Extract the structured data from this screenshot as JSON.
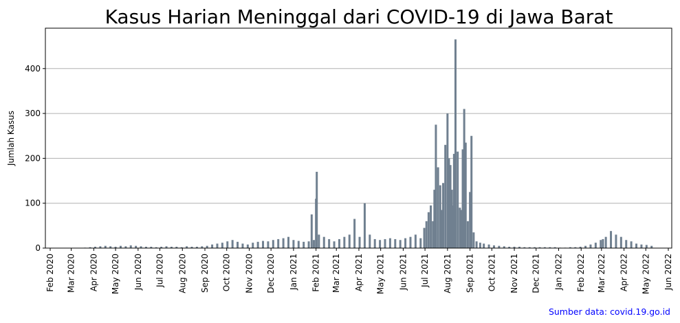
{
  "chart_data": {
    "type": "bar",
    "title": "Kasus Harian Meninggal dari COVID-19 di Jawa Barat",
    "ylabel": "Jumlah Kasus",
    "xlabel": "",
    "ylim": [
      0,
      490
    ],
    "x_range": [
      "2020-02-01",
      "2022-06-01"
    ],
    "grid": "y",
    "bar_color": "#708090",
    "source": {
      "text": "Sumber data: covid.19.go.id",
      "color": "#0000ff"
    },
    "yticks": [
      0,
      100,
      200,
      300,
      400
    ],
    "xticks": [
      {
        "date": "2020-02-01",
        "label": "Feb 2020"
      },
      {
        "date": "2020-03-01",
        "label": "Mar 2020"
      },
      {
        "date": "2020-04-01",
        "label": "Apr 2020"
      },
      {
        "date": "2020-05-01",
        "label": "May 2020"
      },
      {
        "date": "2020-06-01",
        "label": "Jun 2020"
      },
      {
        "date": "2020-07-01",
        "label": "Jul 2020"
      },
      {
        "date": "2020-08-01",
        "label": "Aug 2020"
      },
      {
        "date": "2020-09-01",
        "label": "Sep 2020"
      },
      {
        "date": "2020-10-01",
        "label": "Oct 2020"
      },
      {
        "date": "2020-11-01",
        "label": "Nov 2020"
      },
      {
        "date": "2020-12-01",
        "label": "Dec 2020"
      },
      {
        "date": "2021-01-01",
        "label": "Jan 2021"
      },
      {
        "date": "2021-02-01",
        "label": "Feb 2021"
      },
      {
        "date": "2021-03-01",
        "label": "Mar 2021"
      },
      {
        "date": "2021-04-01",
        "label": "Apr 2021"
      },
      {
        "date": "2021-05-01",
        "label": "May 2021"
      },
      {
        "date": "2021-06-01",
        "label": "Jun 2021"
      },
      {
        "date": "2021-07-01",
        "label": "Jul 2021"
      },
      {
        "date": "2021-08-01",
        "label": "Aug 2021"
      },
      {
        "date": "2021-09-01",
        "label": "Sep 2021"
      },
      {
        "date": "2021-10-01",
        "label": "Oct 2021"
      },
      {
        "date": "2021-11-01",
        "label": "Nov 2021"
      },
      {
        "date": "2021-12-01",
        "label": "Dec 2021"
      },
      {
        "date": "2022-01-01",
        "label": "Jan 2022"
      },
      {
        "date": "2022-02-01",
        "label": "Feb 2022"
      },
      {
        "date": "2022-03-01",
        "label": "Mar 2022"
      },
      {
        "date": "2022-04-01",
        "label": "Apr 2022"
      },
      {
        "date": "2022-05-01",
        "label": "May 2022"
      },
      {
        "date": "2022-06-01",
        "label": "Jun 2022"
      }
    ],
    "series": [
      {
        "x": [
          "2020-03-20",
          "2020-03-27",
          "2020-04-03",
          "2020-04-10",
          "2020-04-17",
          "2020-04-24",
          "2020-05-01",
          "2020-05-08",
          "2020-05-15",
          "2020-05-22",
          "2020-05-29",
          "2020-06-05",
          "2020-06-12",
          "2020-06-19",
          "2020-06-26",
          "2020-07-03",
          "2020-07-10",
          "2020-07-17",
          "2020-07-24",
          "2020-07-31",
          "2020-08-07",
          "2020-08-14",
          "2020-08-21",
          "2020-08-28",
          "2020-09-04",
          "2020-09-11",
          "2020-09-18",
          "2020-09-25",
          "2020-10-02",
          "2020-10-09",
          "2020-10-16",
          "2020-10-23",
          "2020-10-30",
          "2020-11-06",
          "2020-11-13",
          "2020-11-20",
          "2020-11-27",
          "2020-12-04",
          "2020-12-11",
          "2020-12-18",
          "2020-12-25",
          "2021-01-01",
          "2021-01-08",
          "2021-01-15",
          "2021-01-22",
          "2021-01-26",
          "2021-01-29",
          "2021-02-01",
          "2021-02-02",
          "2021-02-05",
          "2021-02-12",
          "2021-02-19",
          "2021-02-26",
          "2021-03-05",
          "2021-03-12",
          "2021-03-19",
          "2021-03-26",
          "2021-04-02",
          "2021-04-09",
          "2021-04-16",
          "2021-04-23",
          "2021-04-30",
          "2021-05-07",
          "2021-05-14",
          "2021-05-21",
          "2021-05-28",
          "2021-06-04",
          "2021-06-11",
          "2021-06-18",
          "2021-06-25",
          "2021-06-30",
          "2021-07-03",
          "2021-07-06",
          "2021-07-09",
          "2021-07-12",
          "2021-07-14",
          "2021-07-16",
          "2021-07-19",
          "2021-07-22",
          "2021-07-24",
          "2021-07-26",
          "2021-07-29",
          "2021-08-01",
          "2021-08-03",
          "2021-08-05",
          "2021-08-07",
          "2021-08-09",
          "2021-08-10",
          "2021-08-12",
          "2021-08-15",
          "2021-08-18",
          "2021-08-20",
          "2021-08-22",
          "2021-08-24",
          "2021-08-26",
          "2021-08-29",
          "2021-09-01",
          "2021-09-03",
          "2021-09-06",
          "2021-09-10",
          "2021-09-15",
          "2021-09-20",
          "2021-09-27",
          "2021-10-04",
          "2021-10-11",
          "2021-10-18",
          "2021-10-25",
          "2021-11-01",
          "2021-11-08",
          "2021-11-15",
          "2021-11-22",
          "2021-11-29",
          "2021-12-06",
          "2021-12-13",
          "2021-12-20",
          "2021-12-27",
          "2022-01-03",
          "2022-01-10",
          "2022-01-17",
          "2022-01-24",
          "2022-01-31",
          "2022-02-07",
          "2022-02-14",
          "2022-02-21",
          "2022-02-28",
          "2022-03-03",
          "2022-03-07",
          "2022-03-14",
          "2022-03-21",
          "2022-03-28",
          "2022-04-04",
          "2022-04-11",
          "2022-04-18",
          "2022-04-25",
          "2022-05-02",
          "2022-05-09"
        ],
        "values": [
          1,
          2,
          3,
          4,
          5,
          4,
          3,
          5,
          4,
          6,
          5,
          4,
          3,
          3,
          2,
          3,
          4,
          3,
          3,
          2,
          4,
          3,
          3,
          4,
          5,
          8,
          10,
          12,
          15,
          18,
          14,
          10,
          8,
          12,
          14,
          16,
          15,
          18,
          20,
          22,
          25,
          18,
          16,
          14,
          15,
          75,
          18,
          110,
          170,
          30,
          25,
          20,
          15,
          20,
          25,
          30,
          65,
          25,
          100,
          30,
          20,
          18,
          20,
          22,
          20,
          18,
          22,
          25,
          30,
          22,
          45,
          60,
          80,
          95,
          60,
          130,
          275,
          180,
          140,
          85,
          145,
          230,
          300,
          200,
          185,
          130,
          95,
          210,
          465,
          215,
          90,
          85,
          220,
          310,
          235,
          60,
          125,
          250,
          35,
          15,
          12,
          10,
          8,
          6,
          5,
          4,
          3,
          3,
          3,
          2,
          2,
          2,
          2,
          2,
          2,
          2,
          1,
          1,
          2,
          2,
          3,
          5,
          8,
          12,
          18,
          20,
          25,
          38,
          30,
          25,
          18,
          15,
          10,
          8,
          7,
          5
        ]
      }
    ]
  }
}
